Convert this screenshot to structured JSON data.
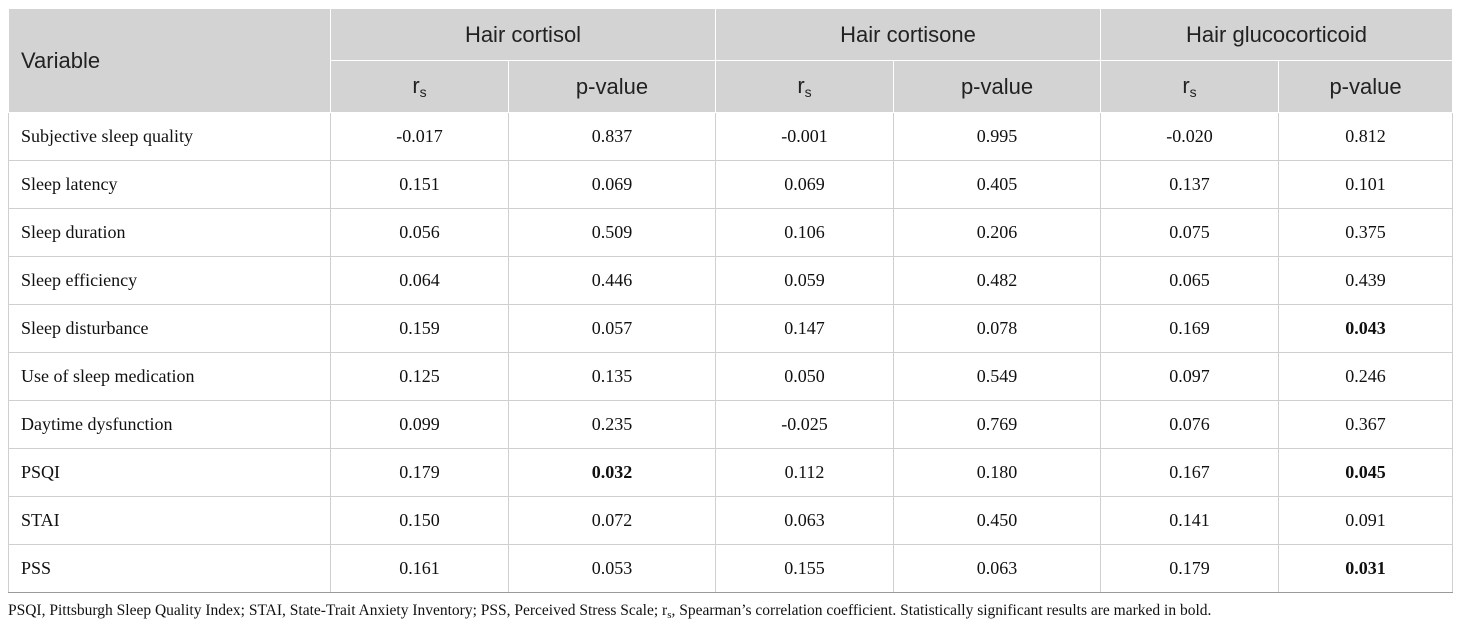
{
  "header": {
    "variable": "Variable",
    "groups": [
      "Hair cortisol",
      "Hair cortisone",
      "Hair glucocorticoid"
    ],
    "r_main": "r",
    "r_sub": "s",
    "p_label": "p-value"
  },
  "rows": [
    {
      "variable": "Subjective sleep quality",
      "cells": [
        "-0.017",
        "0.837",
        "-0.001",
        "0.995",
        "-0.020",
        "0.812"
      ],
      "bold": [
        false,
        false,
        false,
        false,
        false,
        false
      ]
    },
    {
      "variable": "Sleep latency",
      "cells": [
        "0.151",
        "0.069",
        "0.069",
        "0.405",
        "0.137",
        "0.101"
      ],
      "bold": [
        false,
        false,
        false,
        false,
        false,
        false
      ]
    },
    {
      "variable": "Sleep duration",
      "cells": [
        "0.056",
        "0.509",
        "0.106",
        "0.206",
        "0.075",
        "0.375"
      ],
      "bold": [
        false,
        false,
        false,
        false,
        false,
        false
      ]
    },
    {
      "variable": "Sleep efficiency",
      "cells": [
        "0.064",
        "0.446",
        "0.059",
        "0.482",
        "0.065",
        "0.439"
      ],
      "bold": [
        false,
        false,
        false,
        false,
        false,
        false
      ]
    },
    {
      "variable": "Sleep disturbance",
      "cells": [
        "0.159",
        "0.057",
        "0.147",
        "0.078",
        "0.169",
        "0.043"
      ],
      "bold": [
        false,
        false,
        false,
        false,
        false,
        true
      ]
    },
    {
      "variable": "Use of sleep medication",
      "cells": [
        "0.125",
        "0.135",
        "0.050",
        "0.549",
        "0.097",
        "0.246"
      ],
      "bold": [
        false,
        false,
        false,
        false,
        false,
        false
      ]
    },
    {
      "variable": "Daytime dysfunction",
      "cells": [
        "0.099",
        "0.235",
        "-0.025",
        "0.769",
        "0.076",
        "0.367"
      ],
      "bold": [
        false,
        false,
        false,
        false,
        false,
        false
      ]
    },
    {
      "variable": "PSQI",
      "cells": [
        "0.179",
        "0.032",
        "0.112",
        "0.180",
        "0.167",
        "0.045"
      ],
      "bold": [
        false,
        true,
        false,
        false,
        false,
        true
      ]
    },
    {
      "variable": "STAI",
      "cells": [
        "0.150",
        "0.072",
        "0.063",
        "0.450",
        "0.141",
        "0.091"
      ],
      "bold": [
        false,
        false,
        false,
        false,
        false,
        false
      ]
    },
    {
      "variable": "PSS",
      "cells": [
        "0.161",
        "0.053",
        "0.155",
        "0.063",
        "0.179",
        "0.031"
      ],
      "bold": [
        false,
        false,
        false,
        false,
        false,
        true
      ]
    }
  ],
  "footnote": {
    "before": "PSQI, Pittsburgh Sleep Quality Index; STAI, State-Trait Anxiety Inventory; PSS, Perceived Stress Scale; r",
    "sub": "s",
    "after": ", Spearman’s correlation coefficient. Statistically significant results are marked in bold."
  }
}
